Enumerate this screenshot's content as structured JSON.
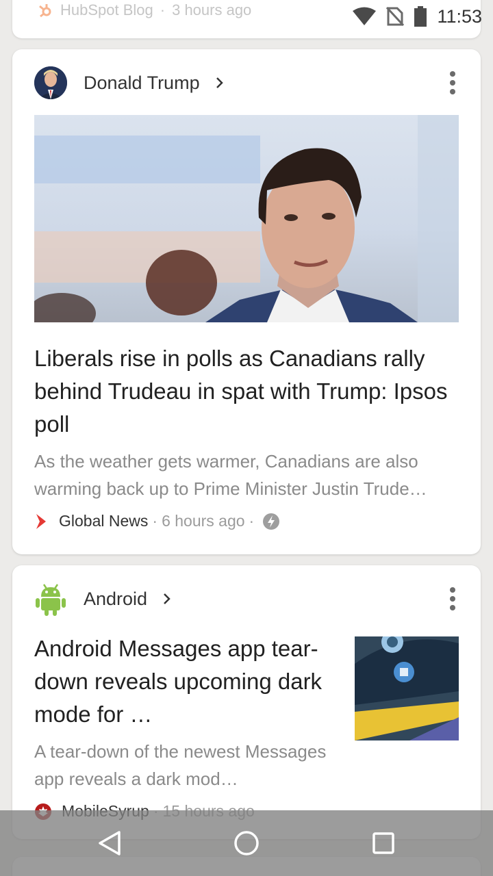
{
  "status_bar": {
    "time": "11:53"
  },
  "partial_card": {
    "source": "HubSpot Blog",
    "separator": "·",
    "time": "3 hours ago"
  },
  "card1": {
    "topic": "Donald Trump",
    "headline": "Liberals rise in polls as Canadians rally behind Trudeau in spat with Trump: Ipsos poll",
    "summary": "As the weather gets warmer, Canadians are also warming back up to Prime Minister Justin Trude…",
    "source": "Global News",
    "separator": "·",
    "time": "6 hours ago",
    "amp_icon": "lightning-icon"
  },
  "card2": {
    "topic": "Android",
    "headline": "Android Messages app tear-down reveals upcoming dark mode for …",
    "summary": "A tear-down of the newest Messages app reveals a dark mod…",
    "source": "MobileSyrup",
    "separator": "·",
    "time": "15 hours ago"
  },
  "colors": {
    "android_green": "#8bc34a",
    "global_news_red": "#e53935",
    "hubspot_orange": "#f7b48f"
  },
  "nav": {
    "back_icon": "back-triangle-icon",
    "home_icon": "home-circle-icon",
    "recents_icon": "recents-square-icon"
  }
}
